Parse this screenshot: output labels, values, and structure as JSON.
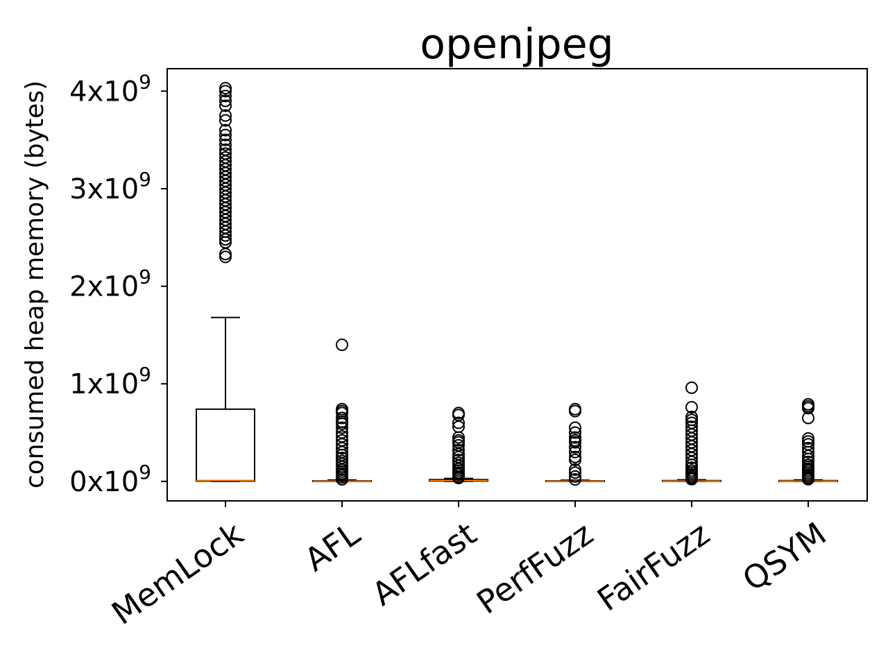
{
  "chart_data": {
    "type": "box",
    "title": "openjpeg",
    "ylabel": "consumed heap memory (bytes)",
    "xlabel": "",
    "ylim": [
      -200000000,
      4230000000
    ],
    "yticks": [
      {
        "value": 0,
        "base": "0x10",
        "exp": "9"
      },
      {
        "value": 1000000000,
        "base": "1x10",
        "exp": "9"
      },
      {
        "value": 2000000000,
        "base": "2x10",
        "exp": "9"
      },
      {
        "value": 3000000000,
        "base": "3x10",
        "exp": "9"
      },
      {
        "value": 4000000000,
        "base": "4x10",
        "exp": "9"
      }
    ],
    "grid": false,
    "colors": {
      "box": "#000000",
      "median": "#ff7f0e",
      "flier": "#000000"
    },
    "categories": [
      "MemLock",
      "AFL",
      "AFLfast",
      "PerfFuzz",
      "FairFuzz",
      "QSYM"
    ],
    "boxes": [
      {
        "name": "MemLock",
        "whisker_low": 0,
        "q1": 3000000,
        "median": 10000000,
        "q3": 740000000,
        "whisker_high": 1680000000,
        "fliers": [
          2300000000,
          2330000000,
          2450000000,
          2480000000,
          2520000000,
          2560000000,
          2600000000,
          2640000000,
          2680000000,
          2720000000,
          2760000000,
          2800000000,
          2840000000,
          2880000000,
          2920000000,
          2960000000,
          3000000000,
          3040000000,
          3080000000,
          3120000000,
          3160000000,
          3200000000,
          3240000000,
          3280000000,
          3320000000,
          3360000000,
          3400000000,
          3450000000,
          3500000000,
          3550000000,
          3600000000,
          3700000000,
          3750000000,
          3850000000,
          3900000000,
          3950000000,
          4000000000,
          4030000000
        ]
      },
      {
        "name": "AFL",
        "whisker_low": 0,
        "q1": 0,
        "median": 2000000,
        "q3": 6000000,
        "whisker_high": 14000000,
        "fliers": [
          1400000000,
          740000000,
          720000000,
          700000000,
          650000000,
          610000000,
          590000000,
          550000000,
          500000000,
          460000000,
          420000000,
          380000000,
          340000000,
          300000000,
          270000000,
          240000000,
          210000000,
          180000000,
          150000000,
          120000000,
          100000000,
          80000000,
          60000000,
          40000000,
          20000000
        ]
      },
      {
        "name": "AFLfast",
        "whisker_low": 0,
        "q1": 3000000,
        "median": 8000000,
        "q3": 18000000,
        "whisker_high": 30000000,
        "fliers": [
          700000000,
          680000000,
          600000000,
          560000000,
          450000000,
          420000000,
          400000000,
          370000000,
          320000000,
          280000000,
          250000000,
          220000000,
          190000000,
          160000000,
          130000000,
          110000000,
          90000000,
          70000000,
          50000000,
          35000000
        ]
      },
      {
        "name": "PerfFuzz",
        "whisker_low": 0,
        "q1": 0,
        "median": 2000000,
        "q3": 6000000,
        "whisker_high": 12000000,
        "fliers": [
          740000000,
          720000000,
          550000000,
          500000000,
          450000000,
          420000000,
          400000000,
          350000000,
          300000000,
          250000000,
          220000000,
          120000000,
          90000000,
          50000000,
          20000000
        ]
      },
      {
        "name": "FairFuzz",
        "whisker_low": 0,
        "q1": 0,
        "median": 3000000,
        "q3": 8000000,
        "whisker_high": 16000000,
        "fliers": [
          960000000,
          760000000,
          660000000,
          630000000,
          600000000,
          560000000,
          520000000,
          480000000,
          440000000,
          400000000,
          360000000,
          320000000,
          280000000,
          240000000,
          200000000,
          170000000,
          140000000,
          110000000,
          90000000,
          70000000,
          50000000,
          35000000,
          22000000
        ]
      },
      {
        "name": "QSYM",
        "whisker_low": 0,
        "q1": 0,
        "median": 3000000,
        "q3": 8000000,
        "whisker_high": 15000000,
        "fliers": [
          790000000,
          770000000,
          750000000,
          650000000,
          440000000,
          410000000,
          380000000,
          340000000,
          300000000,
          260000000,
          230000000,
          200000000,
          170000000,
          150000000,
          130000000,
          110000000,
          90000000,
          70000000,
          50000000,
          35000000,
          22000000
        ]
      }
    ]
  }
}
